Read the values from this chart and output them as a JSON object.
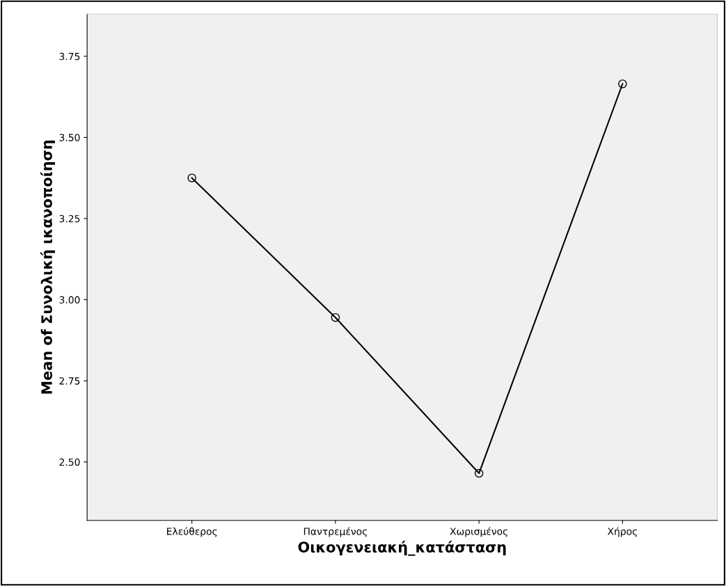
{
  "chart_data": {
    "type": "line",
    "xlabel": "Οικογενειακή_κατάσταση",
    "ylabel": "Mean of Συνολική ικανοποίηση",
    "categories": [
      "Ελεύθερος",
      "Παντρεμένος",
      "Χωρισμένος",
      "Χήρος"
    ],
    "values": [
      3.375,
      2.945,
      2.465,
      3.665
    ],
    "color": "#000000",
    "marker": "circle",
    "line_style": "solid",
    "ylim": [
      2.32,
      3.88
    ],
    "yticks": [
      {
        "value": 2.5,
        "label": "2.50"
      },
      {
        "value": 2.75,
        "label": "2.75"
      },
      {
        "value": 3.0,
        "label": "3.00"
      },
      {
        "value": 3.25,
        "label": "3.25"
      },
      {
        "value": 3.5,
        "label": "3.50"
      },
      {
        "value": 3.75,
        "label": "3.75"
      }
    ],
    "grid": false,
    "legend": false
  }
}
